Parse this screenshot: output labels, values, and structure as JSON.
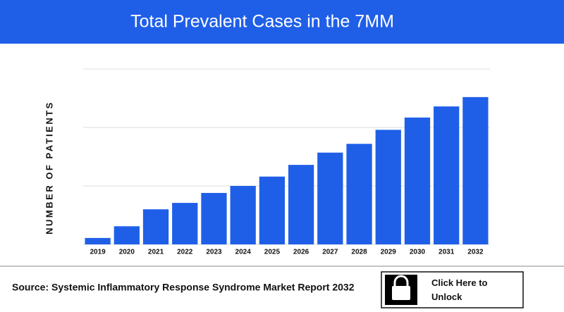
{
  "chart_data": {
    "type": "bar",
    "title": "Total Prevalent Cases in the 7MM",
    "y_label": "NUMBER OF PATIENTS",
    "categories": [
      "2019",
      "2020",
      "2021",
      "2022",
      "2023",
      "2024",
      "2025",
      "2026",
      "2027",
      "2028",
      "2029",
      "2030",
      "2031",
      "2032"
    ],
    "values": [
      0.11,
      0.31,
      0.6,
      0.71,
      0.88,
      1.0,
      1.16,
      1.36,
      1.57,
      1.72,
      1.96,
      2.17,
      2.36,
      2.52
    ],
    "color": "#1f5fe8",
    "ylim": [
      0,
      3
    ],
    "yticks": [
      0,
      1,
      2,
      3
    ],
    "grid": true
  },
  "footer": {
    "source": "Source: Systemic Inflammatory Response Syndrome Market Report 2032",
    "button": "Click Here to Unlock"
  }
}
